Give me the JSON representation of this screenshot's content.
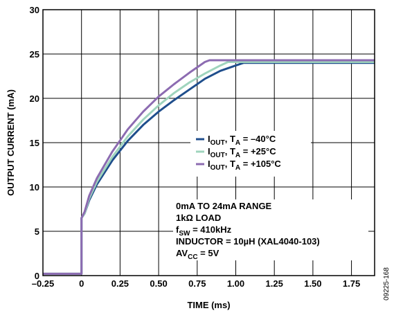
{
  "chart_data": {
    "type": "line",
    "xlabel": "TIME (ms)",
    "ylabel": "OUTPUT CURRENT (mA)",
    "xlim": [
      -0.25,
      1.9
    ],
    "ylim": [
      0,
      30
    ],
    "x_ticks": [
      -0.25,
      0,
      0.25,
      0.5,
      0.75,
      1.0,
      1.25,
      1.5,
      1.75
    ],
    "x_tick_labels": [
      "–0.25",
      "0",
      "0.25",
      "0.50",
      "0.75",
      "1.00",
      "1.25",
      "1.50",
      "1.75"
    ],
    "y_ticks": [
      0,
      5,
      10,
      15,
      20,
      25,
      30
    ],
    "y_tick_labels": [
      "0",
      "5",
      "10",
      "15",
      "20",
      "25",
      "30"
    ],
    "grid": true,
    "legend_position": "center-right",
    "series": [
      {
        "name_main": "I",
        "name_sub": "OUT",
        "name_t": ", T",
        "name_t_sub": "A",
        "name_value": " = –40°C",
        "color": "#1f4e8c",
        "x": [
          -0.25,
          0,
          0,
          0.02,
          0.05,
          0.1,
          0.2,
          0.3,
          0.4,
          0.5,
          0.6,
          0.7,
          0.8,
          0.9,
          1.0,
          1.05,
          1.1,
          1.2,
          1.9
        ],
        "y": [
          0.2,
          0.2,
          6.5,
          7.0,
          8.5,
          10.3,
          13.0,
          15.2,
          17.0,
          18.5,
          19.8,
          21.0,
          22.2,
          23.1,
          23.7,
          24.0,
          24.0,
          24.0,
          24.0
        ]
      },
      {
        "name_main": "I",
        "name_sub": "OUT",
        "name_t": ", T",
        "name_t_sub": "A",
        "name_value": " = +25°C",
        "color": "#9fd4bd",
        "x": [
          -0.25,
          0,
          0,
          0.02,
          0.05,
          0.1,
          0.2,
          0.3,
          0.4,
          0.5,
          0.6,
          0.7,
          0.8,
          0.9,
          0.95,
          1.0,
          1.9
        ],
        "y": [
          0.2,
          0.2,
          6.5,
          7.0,
          8.7,
          10.6,
          13.4,
          15.7,
          17.6,
          19.2,
          20.6,
          21.8,
          22.8,
          23.7,
          24.1,
          24.1,
          24.1
        ]
      },
      {
        "name_main": "I",
        "name_sub": "OUT",
        "name_t": ", T",
        "name_t_sub": "A",
        "name_value": " = +105°C",
        "color": "#8c6bb1",
        "x": [
          -0.25,
          0,
          0,
          0.02,
          0.05,
          0.1,
          0.2,
          0.3,
          0.4,
          0.5,
          0.6,
          0.7,
          0.8,
          0.83,
          0.9,
          1.9
        ],
        "y": [
          0.2,
          0.2,
          6.5,
          7.2,
          9.0,
          11.0,
          14.0,
          16.5,
          18.5,
          20.2,
          21.6,
          22.9,
          24.1,
          24.3,
          24.3,
          24.3
        ]
      }
    ],
    "annotations": [
      {
        "parts": [
          {
            "t": "0mA TO 24mA RANGE"
          }
        ]
      },
      {
        "parts": [
          {
            "t": "1kΩ LOAD"
          }
        ]
      },
      {
        "parts": [
          {
            "t": "f"
          },
          {
            "t": "SW",
            "sub": true
          },
          {
            "t": " = 410kHz"
          }
        ]
      },
      {
        "parts": [
          {
            "t": "INDUCTOR = 10µH (XAL4040-103)"
          }
        ]
      },
      {
        "parts": [
          {
            "t": "AV"
          },
          {
            "t": "CC",
            "sub": true
          },
          {
            "t": " = 5V"
          }
        ]
      }
    ],
    "figure_code": "09225-168"
  }
}
